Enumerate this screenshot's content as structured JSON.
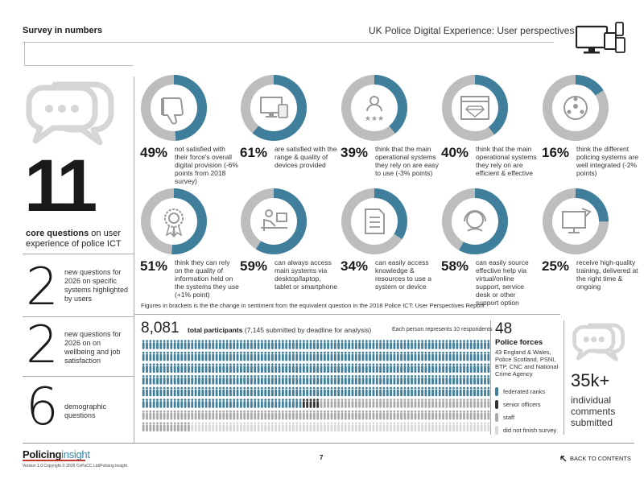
{
  "header": {
    "title": "Survey in numbers",
    "subtitle": "UK Police Digital Experience: User perspectives",
    "icon": "devices-icon"
  },
  "core": {
    "number": "11",
    "label_bold": "core questions",
    "label_rest": " on user experience of police ICT"
  },
  "side_stats": [
    {
      "number": "2",
      "text": "new questions for 2026 on specific systems highlighted by users"
    },
    {
      "number": "2",
      "text": "new questions for 2026 on on wellbeing and job satisfaction"
    },
    {
      "number": "6",
      "text": "demographic questions"
    }
  ],
  "stats": [
    {
      "pct": "49%",
      "value": 49,
      "icon": "thumbs-down-icon",
      "desc": "not satisfied with their force's overall digital provision (-6% points from 2018 survey)"
    },
    {
      "pct": "61%",
      "value": 61,
      "icon": "devices-icon",
      "desc": "are satisfied with the range & quality of devices provided"
    },
    {
      "pct": "39%",
      "value": 39,
      "icon": "user-rating-icon",
      "desc": "think that the main operational systems they rely on are easy to use (-3% points)"
    },
    {
      "pct": "40%",
      "value": 40,
      "icon": "diamond-browser-icon",
      "desc": "think that the main operational systems they rely on are efficient & effective"
    },
    {
      "pct": "16%",
      "value": 16,
      "icon": "network-icon",
      "desc": "think the different policing systems are well integrated (-2% points)"
    },
    {
      "pct": "51%",
      "value": 51,
      "icon": "award-icon",
      "desc": "think they can rely on the quality of information held on the systems they use (+1% point)"
    },
    {
      "pct": "59%",
      "value": 59,
      "icon": "desk-worker-icon",
      "desc": "can always access main systems via desktop/laptop, tablet or smartphone"
    },
    {
      "pct": "34%",
      "value": 34,
      "icon": "document-icon",
      "desc": "can easily access knowledge & resources to use a system or device"
    },
    {
      "pct": "58%",
      "value": 58,
      "icon": "support-agent-icon",
      "desc": "can easily source effective help via virtual/online support, service desk or other support option"
    },
    {
      "pct": "25%",
      "value": 25,
      "icon": "training-screen-icon",
      "desc": "receive high-quality training, delivered at the right time & ongoing"
    }
  ],
  "footnote": "Figures in brackets is the the change in sentiment from the equivalent question in the 2018 Police ICT: User Perspectives Report",
  "participants": {
    "number": "8,081",
    "label_bold": "total participants",
    "label_rest": " (7,145 submitted by deadline for analysis)",
    "each": "Each person represents 10 respondents",
    "counts": {
      "federated": 546,
      "senior": 5,
      "staff": 163,
      "dnf": 94
    }
  },
  "forces": {
    "number": "48",
    "label": "Police forces",
    "desc": "43 England & Wales, Police Scotland, PSNI, BTP, CNC and National Crime Agency"
  },
  "legend": [
    {
      "label": "federated ranks",
      "color": "#3f7f9c"
    },
    {
      "label": "senior officers",
      "color": "#333333"
    },
    {
      "label": "staff",
      "color": "#a9a9a9"
    },
    {
      "label": "did not finish survey",
      "color": "#d8d8d8"
    }
  ],
  "comments": {
    "number": "35k+",
    "label": "individual comments submitted"
  },
  "footer": {
    "logo_main": "Policing",
    "logo_accent": "insight",
    "copyright": "Version 1.0 Copyright © 2026 CoPaCC Ltd/Policing Insight",
    "page": "7",
    "back": "BACK TO CONTENTS"
  },
  "colors": {
    "accent": "#3f7f9c",
    "ring_bg": "#bdbdbd"
  }
}
